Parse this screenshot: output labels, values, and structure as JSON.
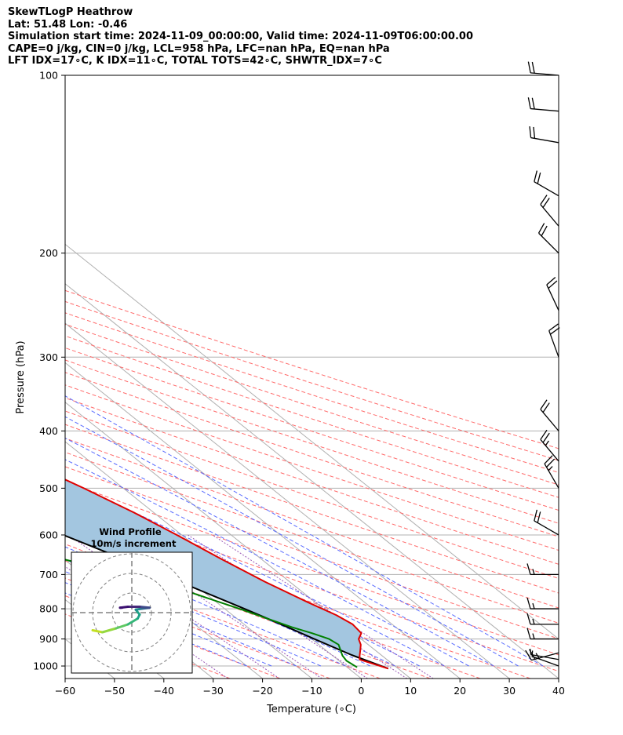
{
  "header": {
    "line1": "SkewTLogP Heathrow",
    "line2": "Lat: 51.48   Lon: -0.46",
    "line3": "Simulation start time: 2024-11-09_00:00:00, Valid time: 2024-11-09T06:00:00.00",
    "line4": "CAPE=0 j/kg, CIN=0 j/kg, LCL=958 hPa, LFC=nan hPa, EQ=nan hPa",
    "line5": "LFT IDX=17∘C, K IDX=11∘C, TOTAL TOTS=42∘C, SHWTR_IDX=7∘C"
  },
  "colors": {
    "temperature": "#e00000",
    "dewpoint": "#008000",
    "parcel": "#000000",
    "cape_fill": "#a3c6e0",
    "isotherm": "#b0b0b0",
    "dry_adiabat": "#ff6b6b",
    "moist_adiabat": "#5a6cff",
    "mixing_ratio": "#9b59b6",
    "grid": "#b0b0b0"
  },
  "chart_data": {
    "type": "line",
    "subtype": "skew-T log-P",
    "title": "SkewTLogP Heathrow",
    "xlabel": "Temperature (∘C)",
    "ylabel": "Pressure (hPa)",
    "xlim": [
      -60,
      40
    ],
    "ylim": [
      1050,
      100
    ],
    "y_scale": "log",
    "grid": true,
    "x_ticks": [
      -60,
      -50,
      -40,
      -30,
      -20,
      -10,
      0,
      10,
      20,
      30,
      40
    ],
    "x_tick_labels": [
      "−60",
      "−50",
      "−40",
      "−30",
      "−20",
      "−10",
      "0",
      "10",
      "20",
      "30",
      "40"
    ],
    "y_ticks": [
      1000,
      900,
      800,
      700,
      600,
      500,
      400,
      300,
      200,
      100
    ],
    "y_tick_labels": [
      "1000",
      "900",
      "800",
      "700",
      "600",
      "500",
      "400",
      "300",
      "200",
      "100"
    ],
    "series": [
      {
        "kind": "temperature",
        "p": [
          1010,
          990,
          975,
          960,
          940,
          920,
          900,
          880,
          850,
          820,
          780,
          720,
          660,
          600,
          550,
          500,
          450,
          400,
          350,
          320,
          300,
          290,
          270,
          250,
          230,
          210,
          190,
          170,
          150,
          130,
          115,
          100
        ],
        "t": [
          8.0,
          6.0,
          4.5,
          5.5,
          7.0,
          8.5,
          9.5,
          11.5,
          12.0,
          11.0,
          8.5,
          5.0,
          2.0,
          -1.0,
          -4.0,
          -8.0,
          -13.0,
          -18.0,
          -23.0,
          -27.0,
          -31.0,
          -35.0,
          -39.0,
          -43.0,
          -46.5,
          -49.5,
          -51.0,
          -51.5,
          -52.0,
          -52.0,
          -52.0,
          -51.5
        ]
      },
      {
        "kind": "dewpoint",
        "p": [
          1005,
          980,
          960,
          940,
          920,
          900,
          880,
          860,
          830,
          800,
          770,
          740,
          700,
          660,
          620,
          590,
          560,
          530,
          500,
          470,
          440,
          420,
          400,
          370,
          350,
          330,
          300,
          280,
          260,
          240,
          220,
          200,
          180,
          165,
          150,
          135,
          120,
          100
        ],
        "t": [
          2.0,
          1.5,
          2.0,
          3.0,
          4.0,
          3.5,
          1.5,
          -1.0,
          -4.0,
          -7.0,
          -10.5,
          -14.0,
          -21.0,
          -30.0,
          -40.0,
          -48.0,
          -51.5,
          -50.0,
          -48.0,
          -49.0,
          -51.0,
          -53.0,
          -54.5,
          -52.0,
          -52.0,
          -60.0,
          -62.0,
          -63.0,
          -64.0,
          -67.0,
          -67.0,
          -67.0,
          -68.0,
          -68.0,
          -67.5,
          -66.0,
          -63.0,
          -55.0
        ]
      },
      {
        "kind": "parcel",
        "p": [
          1010,
          958,
          900,
          850,
          800,
          700,
          600,
          500,
          400,
          300,
          250,
          200,
          150,
          100
        ],
        "t": [
          8.0,
          4.0,
          0.5,
          -2.5,
          -6.0,
          -14.0,
          -24.0,
          -37.0,
          -53.0,
          -75.0,
          -89.0,
          -106.0,
          -128.0,
          -161.0
        ]
      }
    ],
    "wind_barbs": [
      {
        "p": 1000,
        "speed_kt": 5,
        "dir_deg": 290
      },
      {
        "p": 975,
        "speed_kt": 5,
        "dir_deg": 280
      },
      {
        "p": 950,
        "speed_kt": 25,
        "dir_deg": 255
      },
      {
        "p": 900,
        "speed_kt": 15,
        "dir_deg": 270
      },
      {
        "p": 850,
        "speed_kt": 15,
        "dir_deg": 270
      },
      {
        "p": 800,
        "speed_kt": 15,
        "dir_deg": 270
      },
      {
        "p": 700,
        "speed_kt": 15,
        "dir_deg": 270
      },
      {
        "p": 600,
        "speed_kt": 20,
        "dir_deg": 300
      },
      {
        "p": 500,
        "speed_kt": 25,
        "dir_deg": 330
      },
      {
        "p": 450,
        "speed_kt": 25,
        "dir_deg": 320
      },
      {
        "p": 400,
        "speed_kt": 20,
        "dir_deg": 320
      },
      {
        "p": 300,
        "speed_kt": 20,
        "dir_deg": 340
      },
      {
        "p": 250,
        "speed_kt": 20,
        "dir_deg": 335
      },
      {
        "p": 200,
        "speed_kt": 20,
        "dir_deg": 315
      },
      {
        "p": 180,
        "speed_kt": 20,
        "dir_deg": 320
      },
      {
        "p": 160,
        "speed_kt": 20,
        "dir_deg": 300
      },
      {
        "p": 130,
        "speed_kt": 20,
        "dir_deg": 280
      },
      {
        "p": 115,
        "speed_kt": 20,
        "dir_deg": 275
      },
      {
        "p": 100,
        "speed_kt": 20,
        "dir_deg": 275
      }
    ],
    "inset": {
      "title": "Wind Profile",
      "subtitle": "10m/s increment",
      "rings": [
        1,
        2,
        3
      ],
      "hodograph_u": [
        -2.0,
        -1.5,
        -0.8,
        -0.2,
        0.3,
        0.4,
        0.2,
        0.5,
        0.9,
        0.4,
        -0.2,
        -0.6,
        -0.5
      ],
      "hodograph_v": [
        -0.9,
        -1.0,
        -0.8,
        -0.6,
        -0.3,
        -0.1,
        0.15,
        0.2,
        0.25,
        0.3,
        0.3,
        0.25,
        0.25
      ]
    }
  }
}
